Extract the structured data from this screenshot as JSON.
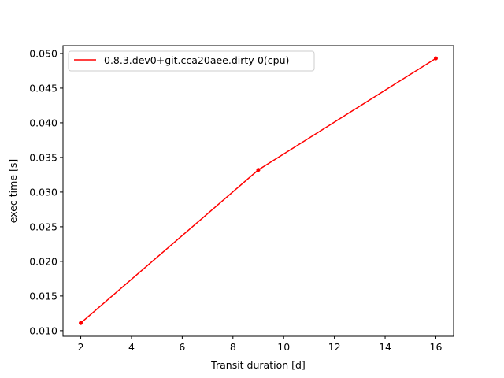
{
  "chart_data": {
    "type": "line",
    "title": "",
    "xlabel": "Transit duration [d]",
    "ylabel": "exec time [s]",
    "xlim": [
      1.3,
      16.7
    ],
    "ylim": [
      0.00919,
      0.05113
    ],
    "xticks": [
      2,
      4,
      6,
      8,
      10,
      12,
      14,
      16
    ],
    "yticks": [
      0.01,
      0.015,
      0.02,
      0.025,
      0.03,
      0.035,
      0.04,
      0.045,
      0.05
    ],
    "xtick_labels": [
      "2",
      "4",
      "6",
      "8",
      "10",
      "12",
      "14",
      "16"
    ],
    "ytick_labels": [
      "0.010",
      "0.015",
      "0.020",
      "0.025",
      "0.030",
      "0.035",
      "0.040",
      "0.045",
      "0.050"
    ],
    "grid": false,
    "legend": "upper-left",
    "series": [
      {
        "name": "0.8.3.dev0+git.cca20aee.dirty-0(cpu)",
        "color": "#ff0000",
        "marker": "dot",
        "x": [
          2,
          9,
          16
        ],
        "y": [
          0.0111,
          0.0332,
          0.0493
        ]
      }
    ]
  }
}
